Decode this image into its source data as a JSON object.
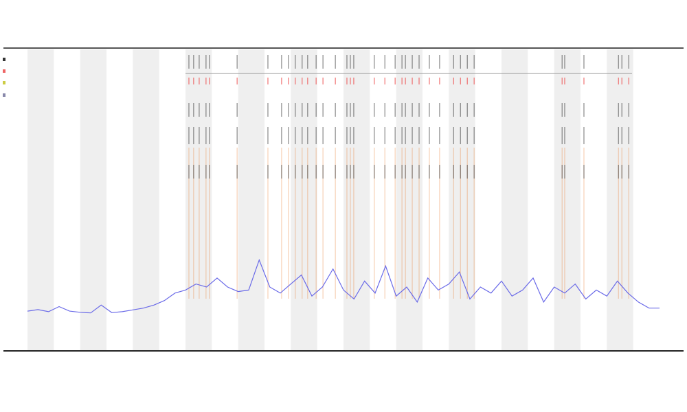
{
  "chart_data": {
    "type": "line",
    "x": [
      0,
      4,
      8,
      12,
      16,
      20,
      24,
      28,
      32,
      36,
      40,
      44,
      48,
      52,
      56,
      60,
      64,
      68,
      72,
      76,
      80,
      84,
      88,
      92,
      96,
      100,
      104,
      108,
      112,
      116,
      120,
      124,
      128,
      132,
      136,
      140,
      144,
      148,
      152,
      156,
      160,
      164,
      168,
      172,
      176,
      180,
      184,
      188,
      192,
      196,
      200,
      204,
      208,
      212,
      216,
      220,
      224,
      228,
      232,
      236,
      240
    ],
    "values": [
      13,
      13.5,
      12.8,
      14.5,
      13,
      12.6,
      12.4,
      15,
      12.5,
      12.8,
      13.4,
      14,
      15,
      16.5,
      19,
      20,
      22,
      21,
      24,
      21,
      19.5,
      20,
      30,
      21,
      19,
      22,
      25,
      18,
      21,
      27,
      20,
      17,
      23,
      19,
      28,
      18,
      21,
      16,
      24,
      20,
      22,
      26,
      17,
      21,
      19,
      23,
      18,
      20,
      24,
      16,
      21,
      19,
      22,
      17,
      20,
      18,
      23,
      19,
      16,
      14,
      14
    ],
    "color": "#6a6ae8",
    "xlim": [
      0,
      240
    ],
    "ylim": [
      0,
      100
    ],
    "events": [
      61.3,
      63.1,
      65.2,
      67.8,
      69.1,
      79.6,
      91.3,
      96.5,
      99.1,
      101.7,
      104.3,
      106.4,
      109.6,
      112.2,
      116.9,
      121.3,
      122.6,
      123.9,
      131.7,
      135.7,
      139.6,
      142.2,
      143.5,
      146.1,
      148.7,
      152.6,
      156.5,
      161.8,
      164.4,
      167,
      169.6,
      203,
      204,
      211.3,
      224.4,
      225.7,
      228.3
    ],
    "event_color": "#e8823a"
  }
}
